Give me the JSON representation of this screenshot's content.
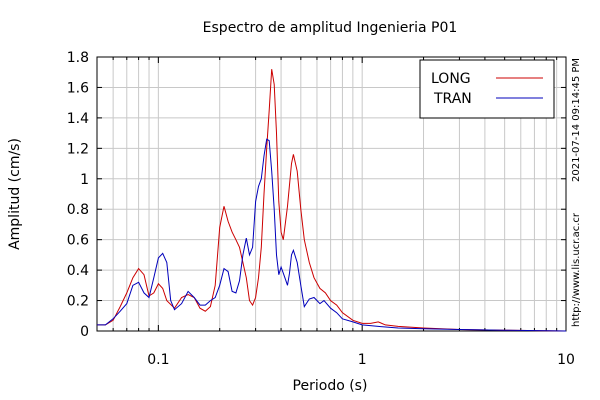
{
  "chart_data": {
    "type": "line",
    "title": "Espectro de amplitud Ingenieria P01",
    "xlabel": "Periodo (s)",
    "ylabel": "Amplitud (cm/s)",
    "x_scale": "log",
    "xlim": [
      0.05,
      10
    ],
    "ylim": [
      0,
      1.8
    ],
    "x_ticks": [
      {
        "value": 0.1,
        "label": "0.1"
      },
      {
        "value": 1,
        "label": "1"
      },
      {
        "value": 10,
        "label": "10"
      }
    ],
    "y_ticks": [
      {
        "value": 0,
        "label": "0"
      },
      {
        "value": 0.2,
        "label": "0.2"
      },
      {
        "value": 0.4,
        "label": "0.4"
      },
      {
        "value": 0.6,
        "label": "0.6"
      },
      {
        "value": 0.8,
        "label": "0.8"
      },
      {
        "value": 1.0,
        "label": "1"
      },
      {
        "value": 1.2,
        "label": "1.2"
      },
      {
        "value": 1.4,
        "label": "1.4"
      },
      {
        "value": 1.6,
        "label": "1.6"
      },
      {
        "value": 1.8,
        "label": "1.8"
      }
    ],
    "grid": true,
    "legend_position": "top-right",
    "series": [
      {
        "name": "LONG",
        "color": "#cc0000",
        "points": [
          [
            0.05,
            0.04
          ],
          [
            0.055,
            0.04
          ],
          [
            0.06,
            0.07
          ],
          [
            0.065,
            0.16
          ],
          [
            0.07,
            0.25
          ],
          [
            0.075,
            0.35
          ],
          [
            0.08,
            0.41
          ],
          [
            0.085,
            0.37
          ],
          [
            0.09,
            0.23
          ],
          [
            0.095,
            0.25
          ],
          [
            0.1,
            0.31
          ],
          [
            0.105,
            0.28
          ],
          [
            0.11,
            0.2
          ],
          [
            0.12,
            0.15
          ],
          [
            0.13,
            0.22
          ],
          [
            0.14,
            0.24
          ],
          [
            0.15,
            0.22
          ],
          [
            0.16,
            0.15
          ],
          [
            0.17,
            0.13
          ],
          [
            0.18,
            0.16
          ],
          [
            0.19,
            0.3
          ],
          [
            0.2,
            0.68
          ],
          [
            0.21,
            0.82
          ],
          [
            0.22,
            0.72
          ],
          [
            0.23,
            0.65
          ],
          [
            0.24,
            0.6
          ],
          [
            0.25,
            0.55
          ],
          [
            0.26,
            0.45
          ],
          [
            0.27,
            0.35
          ],
          [
            0.28,
            0.2
          ],
          [
            0.29,
            0.17
          ],
          [
            0.3,
            0.22
          ],
          [
            0.31,
            0.35
          ],
          [
            0.32,
            0.55
          ],
          [
            0.33,
            0.9
          ],
          [
            0.34,
            1.2
          ],
          [
            0.35,
            1.45
          ],
          [
            0.36,
            1.72
          ],
          [
            0.37,
            1.62
          ],
          [
            0.38,
            1.3
          ],
          [
            0.39,
            0.85
          ],
          [
            0.4,
            0.65
          ],
          [
            0.41,
            0.6
          ],
          [
            0.43,
            0.82
          ],
          [
            0.45,
            1.1
          ],
          [
            0.46,
            1.16
          ],
          [
            0.48,
            1.05
          ],
          [
            0.5,
            0.8
          ],
          [
            0.52,
            0.6
          ],
          [
            0.55,
            0.45
          ],
          [
            0.58,
            0.35
          ],
          [
            0.62,
            0.28
          ],
          [
            0.66,
            0.25
          ],
          [
            0.7,
            0.2
          ],
          [
            0.75,
            0.17
          ],
          [
            0.8,
            0.12
          ],
          [
            0.9,
            0.07
          ],
          [
            1.0,
            0.05
          ],
          [
            1.1,
            0.05
          ],
          [
            1.2,
            0.06
          ],
          [
            1.3,
            0.04
          ],
          [
            1.5,
            0.03
          ],
          [
            2.0,
            0.02
          ],
          [
            3.0,
            0.01
          ],
          [
            5.0,
            0.005
          ],
          [
            10.0,
            0.0
          ]
        ]
      },
      {
        "name": "TRAN",
        "color": "#0000bb",
        "points": [
          [
            0.05,
            0.04
          ],
          [
            0.055,
            0.04
          ],
          [
            0.06,
            0.08
          ],
          [
            0.065,
            0.13
          ],
          [
            0.07,
            0.18
          ],
          [
            0.075,
            0.3
          ],
          [
            0.08,
            0.32
          ],
          [
            0.085,
            0.25
          ],
          [
            0.09,
            0.22
          ],
          [
            0.095,
            0.35
          ],
          [
            0.1,
            0.48
          ],
          [
            0.105,
            0.51
          ],
          [
            0.11,
            0.45
          ],
          [
            0.115,
            0.2
          ],
          [
            0.12,
            0.14
          ],
          [
            0.13,
            0.18
          ],
          [
            0.14,
            0.26
          ],
          [
            0.15,
            0.22
          ],
          [
            0.16,
            0.17
          ],
          [
            0.17,
            0.17
          ],
          [
            0.18,
            0.2
          ],
          [
            0.19,
            0.22
          ],
          [
            0.2,
            0.3
          ],
          [
            0.21,
            0.41
          ],
          [
            0.22,
            0.39
          ],
          [
            0.23,
            0.26
          ],
          [
            0.24,
            0.25
          ],
          [
            0.25,
            0.33
          ],
          [
            0.26,
            0.5
          ],
          [
            0.27,
            0.61
          ],
          [
            0.28,
            0.5
          ],
          [
            0.29,
            0.55
          ],
          [
            0.3,
            0.85
          ],
          [
            0.31,
            0.95
          ],
          [
            0.32,
            1.0
          ],
          [
            0.33,
            1.15
          ],
          [
            0.34,
            1.26
          ],
          [
            0.35,
            1.25
          ],
          [
            0.36,
            1.05
          ],
          [
            0.37,
            0.8
          ],
          [
            0.38,
            0.5
          ],
          [
            0.39,
            0.37
          ],
          [
            0.4,
            0.42
          ],
          [
            0.41,
            0.38
          ],
          [
            0.42,
            0.34
          ],
          [
            0.43,
            0.3
          ],
          [
            0.44,
            0.38
          ],
          [
            0.45,
            0.5
          ],
          [
            0.46,
            0.53
          ],
          [
            0.48,
            0.45
          ],
          [
            0.5,
            0.3
          ],
          [
            0.52,
            0.16
          ],
          [
            0.55,
            0.21
          ],
          [
            0.58,
            0.22
          ],
          [
            0.62,
            0.18
          ],
          [
            0.65,
            0.2
          ],
          [
            0.7,
            0.15
          ],
          [
            0.75,
            0.12
          ],
          [
            0.8,
            0.08
          ],
          [
            0.9,
            0.06
          ],
          [
            1.0,
            0.04
          ],
          [
            1.2,
            0.03
          ],
          [
            1.5,
            0.02
          ],
          [
            2.0,
            0.015
          ],
          [
            3.0,
            0.01
          ],
          [
            5.0,
            0.005
          ],
          [
            10.0,
            0.0
          ]
        ]
      }
    ]
  },
  "side_labels": {
    "timestamp": "2021-07-14 09:14:45 PM",
    "url": "http://www.lis.ucr.ac.cr"
  }
}
